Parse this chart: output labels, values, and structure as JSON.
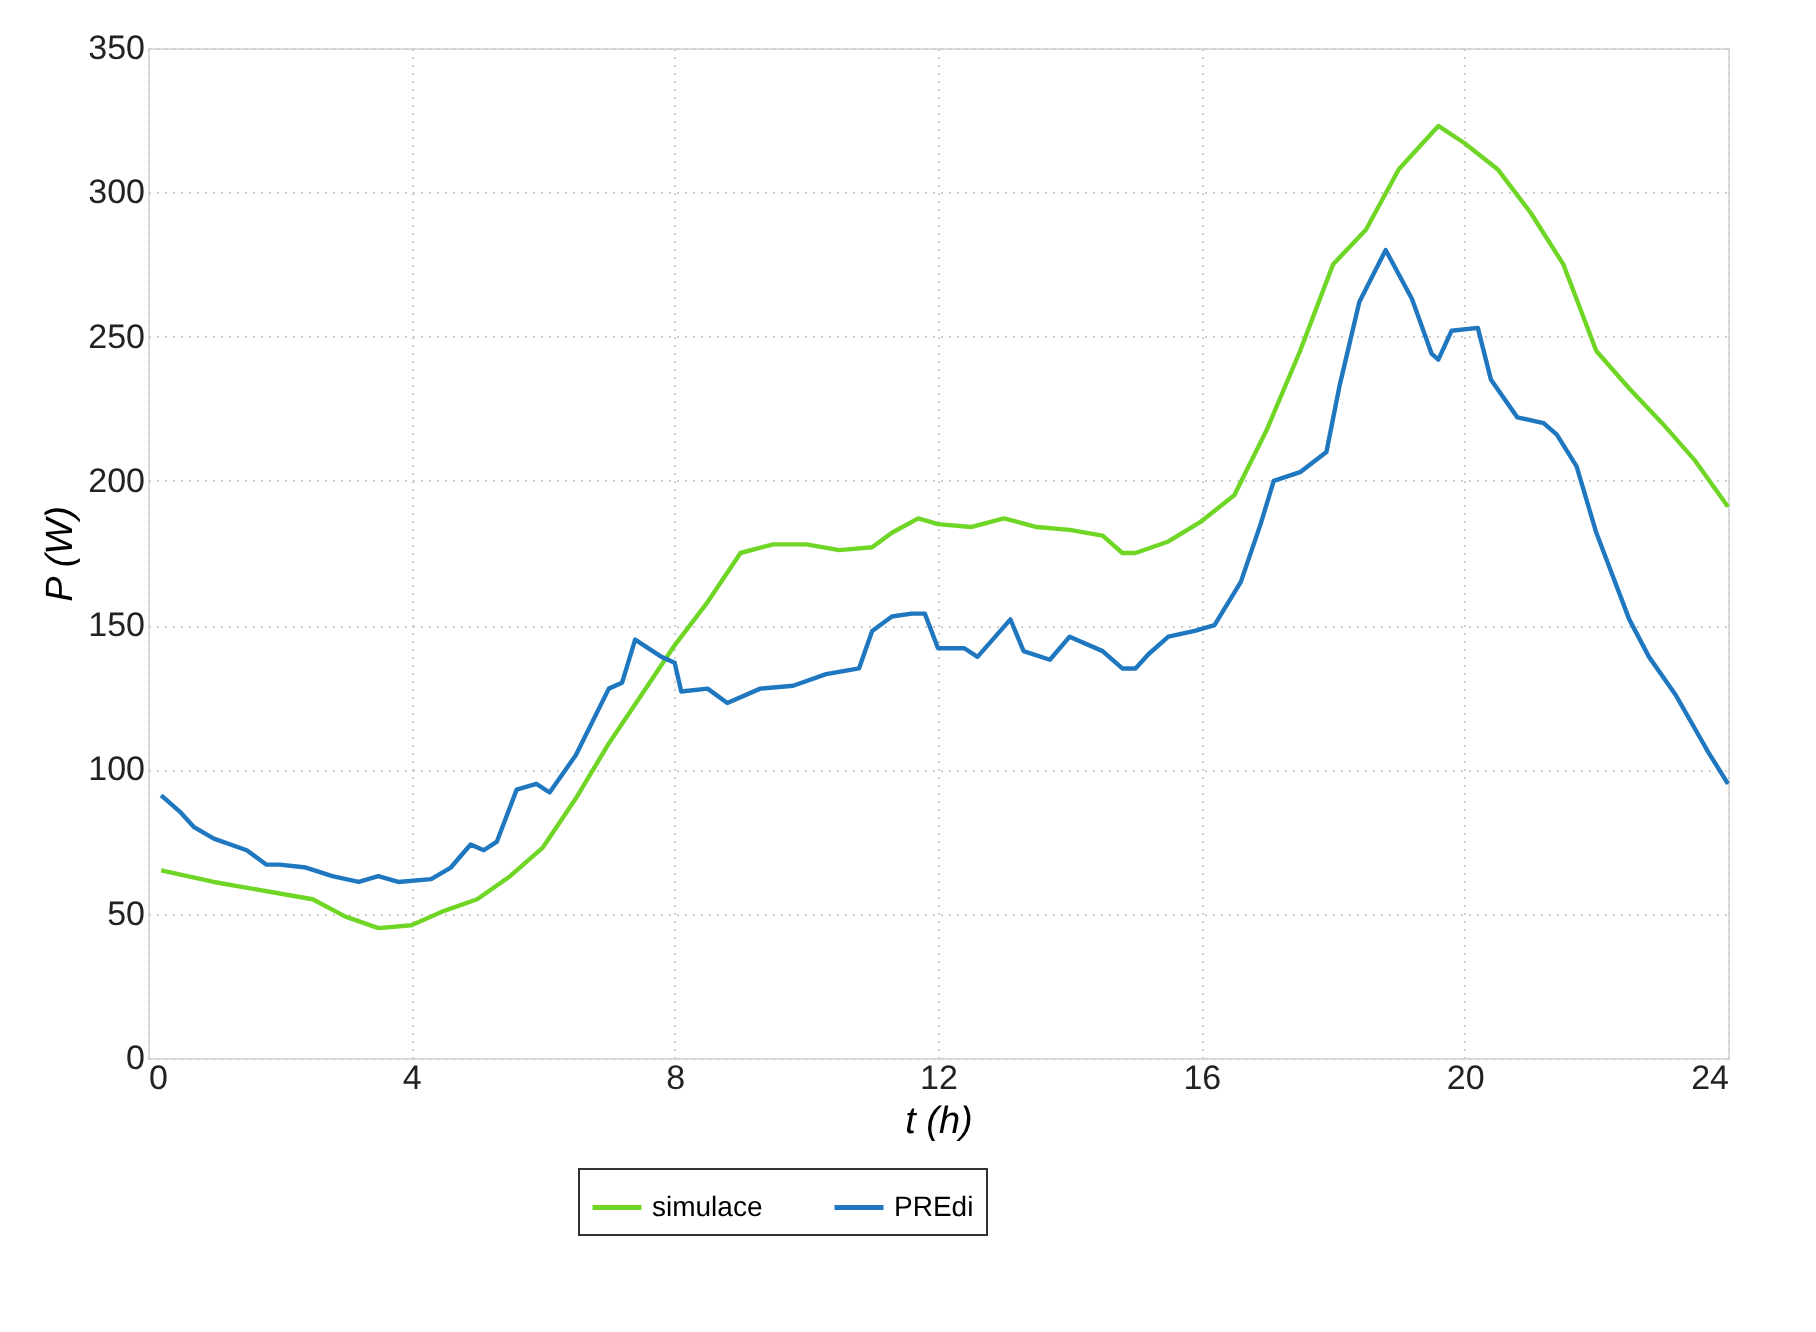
{
  "chart_data": {
    "type": "line",
    "xlabel": "t (h)",
    "ylabel": "P (W)",
    "xlim": [
      0,
      24
    ],
    "ylim": [
      0,
      350
    ],
    "xticks": [
      0,
      4,
      8,
      12,
      16,
      20,
      24
    ],
    "yticks": [
      0,
      50,
      100,
      150,
      200,
      250,
      300,
      350
    ],
    "grid": true,
    "legend": "bottom",
    "line_style": "solid",
    "marker": "none",
    "series": [
      {
        "name": "simulace",
        "color": "#6fd626",
        "x": [
          0.2,
          1,
          2,
          2.5,
          3,
          3.5,
          4,
          4.5,
          5,
          5.5,
          6,
          6.5,
          7,
          7.5,
          8,
          8.5,
          9,
          9.5,
          10,
          10.5,
          11,
          11.3,
          11.7,
          12,
          12.5,
          13,
          13.5,
          14,
          14.5,
          14.8,
          15,
          15.5,
          16,
          16.5,
          17,
          17.5,
          18,
          18.5,
          19,
          19.6,
          20,
          20.5,
          21,
          21.5,
          22,
          22.5,
          23,
          23.5,
          24
        ],
        "values": [
          65,
          61,
          57,
          55,
          49,
          45,
          46,
          51,
          55,
          63,
          73,
          90,
          109,
          126,
          143,
          158,
          175,
          178,
          178,
          176,
          177,
          182,
          187,
          185,
          184,
          187,
          184,
          183,
          181,
          175,
          175,
          179,
          186,
          195,
          218,
          245,
          275,
          287,
          308,
          323,
          317,
          308,
          293,
          275,
          245,
          232,
          220,
          207,
          191
        ]
      },
      {
        "name": "PREdi",
        "color": "#1f77c0",
        "x": [
          0.2,
          0.5,
          0.7,
          1,
          1.5,
          1.8,
          2,
          2.4,
          2.8,
          3.2,
          3.5,
          3.8,
          4.3,
          4.6,
          4.9,
          5.1,
          5.3,
          5.6,
          5.9,
          6.1,
          6.5,
          7,
          7.2,
          7.4,
          7.8,
          8,
          8.1,
          8.5,
          8.8,
          9.3,
          9.8,
          10.3,
          10.8,
          11,
          11.3,
          11.6,
          11.8,
          12,
          12.4,
          12.6,
          13.1,
          13.3,
          13.7,
          14,
          14.5,
          14.8,
          15,
          15.2,
          15.5,
          15.9,
          16.2,
          16.6,
          16.9,
          17.1,
          17.5,
          17.9,
          18.1,
          18.4,
          18.8,
          19.2,
          19.5,
          19.6,
          19.8,
          20.2,
          20.4,
          20.8,
          21.2,
          21.4,
          21.7,
          22,
          22.5,
          22.8,
          23.2,
          23.5,
          23.7,
          24
        ],
        "values": [
          91,
          85,
          80,
          76,
          72,
          67,
          67,
          66,
          63,
          61,
          63,
          61,
          62,
          66,
          74,
          72,
          75,
          93,
          95,
          92,
          105,
          128,
          130,
          145,
          139,
          137,
          127,
          128,
          123,
          128,
          129,
          133,
          135,
          148,
          153,
          154,
          154,
          142,
          142,
          139,
          152,
          141,
          138,
          146,
          141,
          135,
          135,
          140,
          146,
          148,
          150,
          165,
          185,
          200,
          203,
          210,
          233,
          262,
          280,
          263,
          244,
          242,
          252,
          253,
          235,
          222,
          220,
          216,
          205,
          182,
          152,
          139,
          126,
          114,
          106,
          95
        ]
      }
    ]
  }
}
